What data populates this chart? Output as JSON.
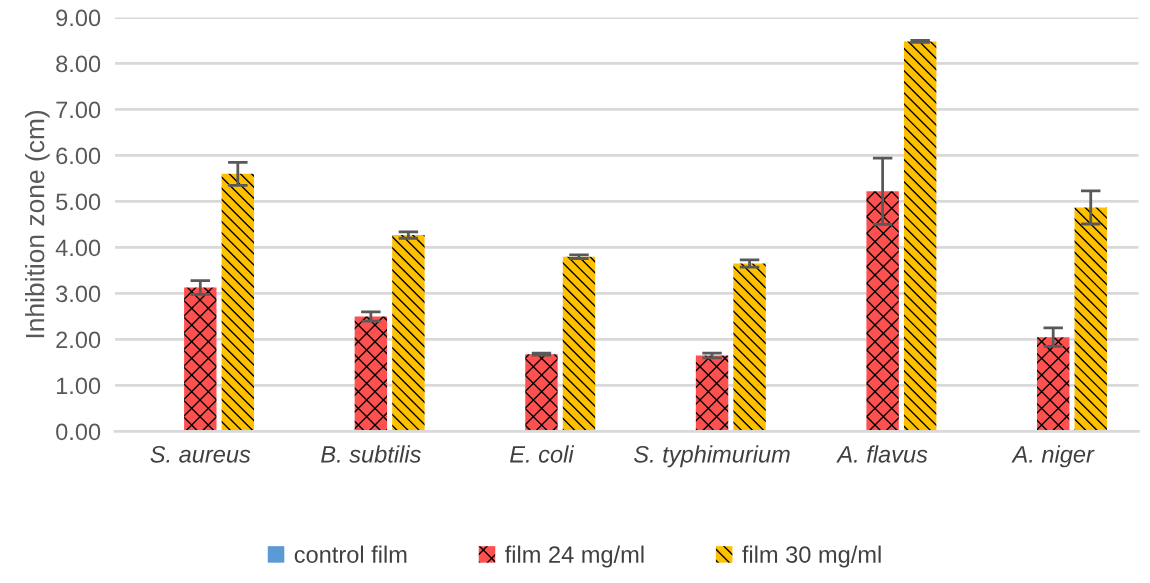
{
  "chart_data": {
    "type": "bar",
    "ylabel": "Inhibition zone (cm)",
    "categories": [
      "S. aureus",
      "B. subtilis",
      "E. coli",
      "S. typhimurium",
      "A. flavus",
      "A. niger"
    ],
    "series": [
      {
        "name": "control film",
        "color": "#5b9bd5",
        "values": [
          0,
          0,
          0,
          0,
          0,
          0
        ]
      },
      {
        "name": "film 24 mg/ml",
        "color": "#ff5050",
        "values": [
          3.13,
          2.5,
          1.68,
          1.65,
          5.22,
          2.05
        ],
        "errors": [
          0.15,
          0.1,
          0.02,
          0.05,
          0.72,
          0.2
        ]
      },
      {
        "name": "film 30 mg/ml",
        "color": "#ffc000",
        "values": [
          5.6,
          4.27,
          3.8,
          3.65,
          8.48,
          4.87
        ],
        "errors": [
          0.25,
          0.07,
          0.04,
          0.08,
          0.02,
          0.36
        ]
      }
    ],
    "ylim": [
      0,
      9
    ],
    "yticks": [
      {
        "value": 0,
        "label": "0.00"
      },
      {
        "value": 1,
        "label": "1.00"
      },
      {
        "value": 2,
        "label": "2.00"
      },
      {
        "value": 3,
        "label": "3.00"
      },
      {
        "value": 4,
        "label": "4.00"
      },
      {
        "value": 5,
        "label": "5.00"
      },
      {
        "value": 6,
        "label": "6.00"
      },
      {
        "value": 7,
        "label": "7.00"
      },
      {
        "value": 8,
        "label": "8.00"
      },
      {
        "value": 9,
        "label": "9.00"
      }
    ],
    "grid": "y",
    "legend": "bottom"
  }
}
